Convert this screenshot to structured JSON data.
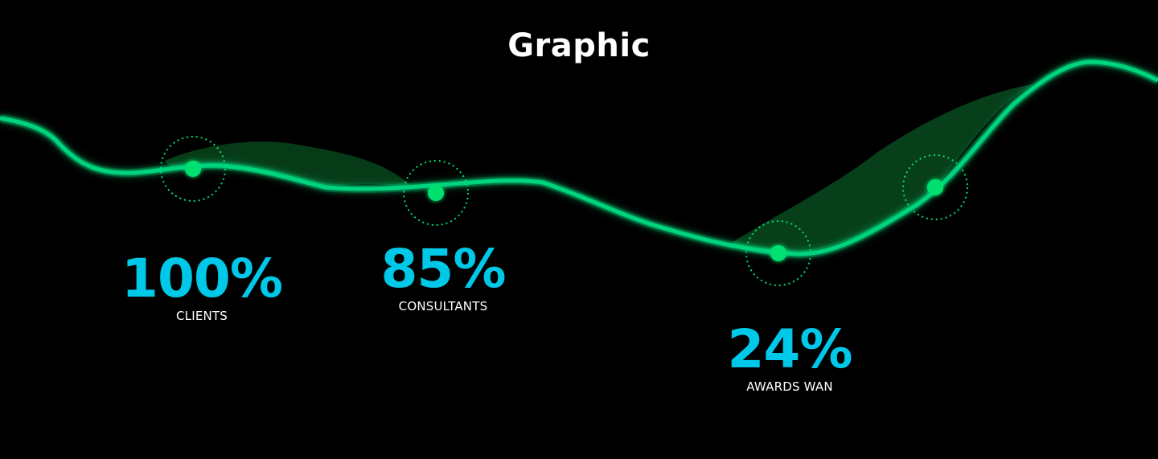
{
  "header": {
    "title": "Graphic"
  },
  "colors": {
    "background": "#000000",
    "curve": "#00d47e",
    "curve_glow": "#00ff8c",
    "fill": "#0a5a25",
    "marker": "#00e070",
    "stat_value": "#00c8e8",
    "stat_label": "#ffffff"
  },
  "stats": [
    {
      "value": "100%",
      "label": "CLIENTS"
    },
    {
      "value": "85%",
      "label": "CONSULTANTS"
    },
    {
      "value": "24%",
      "label": "AWARDS WAN"
    }
  ]
}
